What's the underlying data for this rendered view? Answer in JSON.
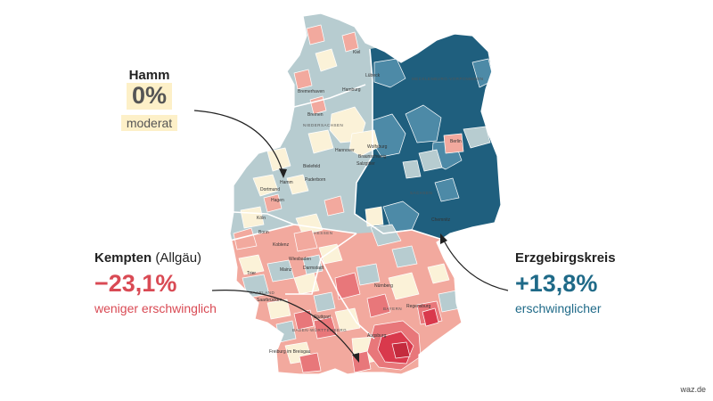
{
  "colors": {
    "dark_blue": "#1f5f7e",
    "mid_blue": "#4d8aa7",
    "light_blue": "#b7ccd0",
    "neutral": "#fbf2d8",
    "light_red": "#f2a99e",
    "mid_red": "#e8777a",
    "dark_red": "#d9394c",
    "border": "#ffffff"
  },
  "callouts": {
    "hamm": {
      "name": "Hamm",
      "value": "0%",
      "label": "moderat"
    },
    "kempten": {
      "name": "Kempten",
      "name_suffix": "(Allgäu)",
      "value": "−23,1%",
      "label": "weniger erschwinglich"
    },
    "erzgebirgskreis": {
      "name": "Erzgebirgskreis",
      "value": "+13,8%",
      "label": "erschwinglicher"
    }
  },
  "map_labels": {
    "cities": [
      "Kiel",
      "Lübeck",
      "Hamburg",
      "Bremerhaven",
      "Bremen",
      "Hannover",
      "Wolfsburg",
      "Braunschweig",
      "Salzgitter",
      "Bielefeld",
      "Paderborn",
      "Dortmund",
      "Hamm",
      "Hagen",
      "Köln",
      "Bonn",
      "Koblenz",
      "Wiesbaden",
      "Darmstadt",
      "Mainz",
      "Trier",
      "Saarbrücken",
      "Stuttgart",
      "Nürnberg",
      "Regensburg",
      "Augsburg",
      "Freiburg im Breisgau",
      "Berlin",
      "Chemnitz"
    ],
    "states": [
      "MECKLENBURG-VORPOMMERN",
      "NIEDERSACHSEN",
      "SACHSEN",
      "HESSEN",
      "SAARLAND",
      "BAYERN",
      "BADEN-WÜRTTEMBERG"
    ]
  },
  "source": "waz.de"
}
